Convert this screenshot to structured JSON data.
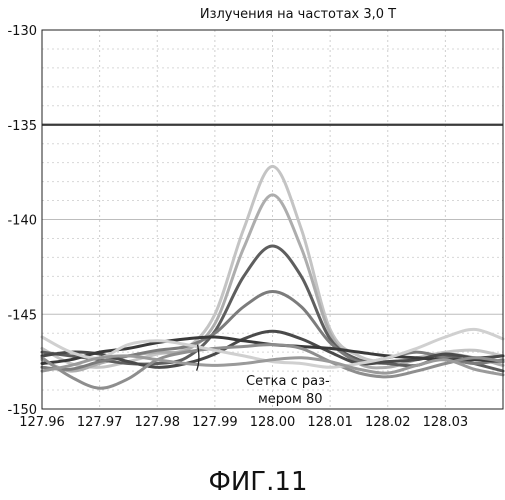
{
  "chart_data": {
    "type": "line",
    "title": "Излучения на частотах 3,0 Т",
    "xlabel": "",
    "ylabel": "",
    "xlim": [
      127.96,
      128.04
    ],
    "ylim": [
      -150,
      -130
    ],
    "x_ticks": [
      "127.96",
      "127.97",
      "127.98",
      "127.99",
      "128.00",
      "128.01",
      "128.02",
      "128.03"
    ],
    "y_ticks": [
      "-130",
      "-135",
      "-140",
      "-145",
      "-150"
    ],
    "y_tick_values": [
      -130,
      -135,
      -140,
      -145,
      -150
    ],
    "emphasized_gridline": -135,
    "grid": true,
    "x": [
      127.96,
      127.965,
      127.97,
      127.975,
      127.98,
      127.985,
      127.99,
      127.995,
      128.0,
      128.005,
      128.01,
      128.015,
      128.02,
      128.025,
      128.03,
      128.035,
      128.04
    ],
    "series": [
      {
        "color": "#c4c4c4",
        "values": [
          -146.8,
          -147.6,
          -147.8,
          -147.5,
          -147.1,
          -146.8,
          -145.0,
          -140.5,
          -137.2,
          -140.5,
          -145.8,
          -147.2,
          -147.5,
          -147.3,
          -147.0,
          -146.9,
          -147.2
        ]
      },
      {
        "color": "#adadad",
        "values": [
          -147.4,
          -148.0,
          -147.6,
          -147.2,
          -147.0,
          -146.9,
          -145.5,
          -141.5,
          -138.7,
          -141.5,
          -146.0,
          -147.6,
          -147.8,
          -147.4,
          -147.1,
          -147.3,
          -147.7
        ]
      },
      {
        "color": "#5e5e5e",
        "values": [
          -147.0,
          -147.2,
          -147.4,
          -147.6,
          -147.6,
          -147.3,
          -145.9,
          -143.0,
          -141.4,
          -143.0,
          -146.3,
          -147.4,
          -147.6,
          -147.7,
          -147.2,
          -147.6,
          -148.0
        ]
      },
      {
        "color": "#7c7c7c",
        "values": [
          -147.8,
          -147.9,
          -147.5,
          -147.2,
          -146.9,
          -146.7,
          -146.0,
          -144.6,
          -143.8,
          -144.6,
          -146.5,
          -147.5,
          -147.3,
          -147.0,
          -147.3,
          -147.6,
          -147.4
        ]
      },
      {
        "color": "#4a4a4a",
        "values": [
          -147.2,
          -147.0,
          -147.1,
          -147.5,
          -147.8,
          -147.6,
          -147.1,
          -146.3,
          -145.9,
          -146.3,
          -147.0,
          -147.6,
          -147.5,
          -147.4,
          -147.1,
          -147.3,
          -147.2
        ]
      },
      {
        "color": "#3a3a3a",
        "values": [
          -147.6,
          -147.4,
          -147.0,
          -146.8,
          -146.5,
          -146.3,
          -146.2,
          -146.4,
          -146.6,
          -146.7,
          -146.8,
          -147.0,
          -147.2,
          -147.3,
          -147.4,
          -147.4,
          -147.5
        ]
      },
      {
        "color": "#8e8e8e",
        "values": [
          -147.3,
          -148.3,
          -148.9,
          -148.4,
          -147.4,
          -147.0,
          -146.8,
          -146.7,
          -146.6,
          -146.8,
          -147.5,
          -148.1,
          -148.3,
          -148.0,
          -147.6,
          -147.3,
          -147.5
        ]
      },
      {
        "color": "#d0d0d0",
        "values": [
          -146.2,
          -147.0,
          -147.3,
          -146.6,
          -146.4,
          -146.6,
          -146.9,
          -147.2,
          -147.5,
          -147.6,
          -147.8,
          -147.6,
          -147.3,
          -146.8,
          -146.2,
          -145.8,
          -146.3
        ]
      },
      {
        "color": "#9a9a9a",
        "values": [
          -148.0,
          -147.7,
          -147.3,
          -147.2,
          -147.4,
          -147.6,
          -147.7,
          -147.6,
          -147.4,
          -147.3,
          -147.5,
          -147.9,
          -148.1,
          -147.7,
          -147.4,
          -147.9,
          -148.2
        ]
      }
    ],
    "annotation": {
      "line1": "Сетка с раз-",
      "line2": "мером 80",
      "point_x": 127.987,
      "point_y": -146.6
    }
  },
  "figure_caption": "ФИГ.11"
}
